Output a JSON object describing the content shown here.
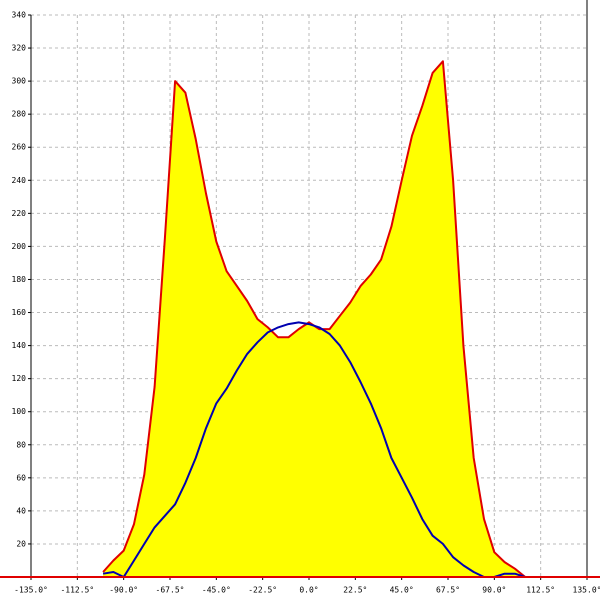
{
  "chart_data": {
    "type": "line",
    "x": [
      -100,
      -95,
      -90,
      -85,
      -80,
      -75,
      -70,
      -65,
      -60,
      -55,
      -50,
      -45,
      -40,
      -35,
      -30,
      -25,
      -20,
      -15,
      -10,
      -5,
      0,
      5,
      10,
      15,
      20,
      25,
      30,
      35,
      40,
      45,
      50,
      55,
      60,
      65,
      70,
      75,
      80,
      85,
      90,
      95,
      100,
      105
    ],
    "series": [
      {
        "color": "#e00000",
        "fill_color": "#ffff00",
        "values": [
          3,
          10,
          16,
          32,
          62,
          115,
          205,
          300,
          293,
          265,
          232,
          203,
          185,
          176,
          167,
          156,
          151,
          145,
          145,
          150,
          154,
          150,
          150,
          158,
          166,
          176,
          183,
          192,
          212,
          240,
          267,
          285,
          305,
          312,
          240,
          140,
          72,
          35,
          15,
          9,
          5,
          0
        ]
      },
      {
        "color": "#0000b0",
        "values": [
          2,
          3,
          0,
          10,
          20,
          30,
          37,
          44,
          57,
          72,
          90,
          105,
          114,
          125,
          135,
          142,
          148,
          151,
          153,
          154,
          153,
          151,
          147,
          140,
          130,
          118,
          105,
          90,
          72,
          60,
          48,
          35,
          25,
          20,
          12,
          7,
          3,
          0,
          0,
          2,
          2,
          0
        ]
      }
    ],
    "xlim": [
      -135,
      135
    ],
    "xticks": [
      {
        "value": -135,
        "label": "-135.0°"
      },
      {
        "value": -112.5,
        "label": "-112.5°"
      },
      {
        "value": -90,
        "label": "-90.0°"
      },
      {
        "value": -67.5,
        "label": "-67.5°"
      },
      {
        "value": -45,
        "label": "-45.0°"
      },
      {
        "value": -22.5,
        "label": "-22.5°"
      },
      {
        "value": 0,
        "label": "0.0°"
      },
      {
        "value": 22.5,
        "label": "22.5°"
      },
      {
        "value": 45,
        "label": "45.0°"
      },
      {
        "value": 67.5,
        "label": "67.5°"
      },
      {
        "value": 90,
        "label": "90.0°"
      },
      {
        "value": 112.5,
        "label": "112.5°"
      },
      {
        "value": 135,
        "label": "135.0°"
      }
    ],
    "ylim": [
      0,
      340
    ],
    "yticks": [
      20,
      40,
      60,
      80,
      100,
      120,
      140,
      160,
      180,
      200,
      220,
      240,
      260,
      280,
      300,
      320,
      340
    ],
    "grid": true
  }
}
